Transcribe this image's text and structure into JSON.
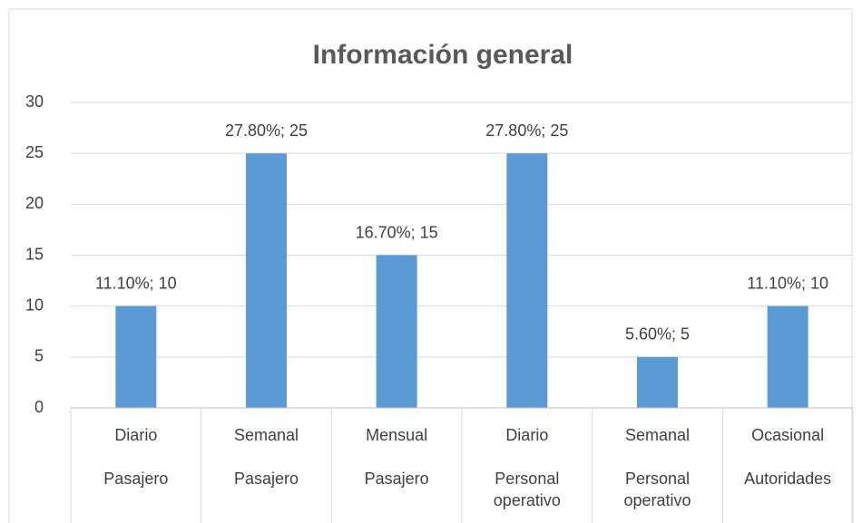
{
  "chart_data": {
    "type": "bar",
    "title": "Información general",
    "categories": [
      "Diario",
      "Semanal",
      "Mensual",
      "Diario",
      "Semanal",
      "Ocasional"
    ],
    "groups": [
      "Pasajero",
      "Pasajero",
      "Pasajero",
      "Personal operativo",
      "Personal operativo",
      "Autoridades"
    ],
    "values": [
      10,
      25,
      15,
      25,
      5,
      10
    ],
    "value_labels": [
      "11.10%; 10",
      "27.80%; 25",
      "16.70%; 15",
      "27.80%; 25",
      "5.60%; 5",
      "11.10%; 10"
    ],
    "color": "#5b9bd5",
    "ylim": [
      0,
      30
    ],
    "yticks": [
      0,
      5,
      10,
      15,
      20,
      25,
      30
    ],
    "grid": true
  }
}
